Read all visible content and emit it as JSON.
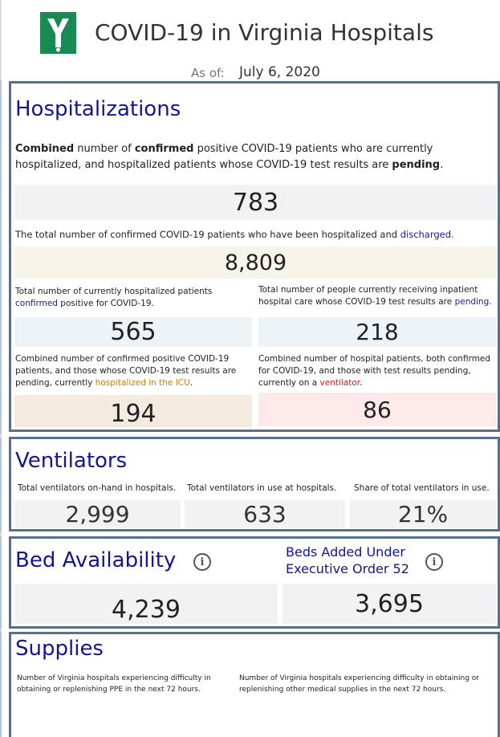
{
  "header": {
    "title": "COVID-19 in Virginia Hospitals",
    "as_of_label": "As of:",
    "as_of_date": "July 6, 2020"
  },
  "hospitalizations": {
    "title": "Hospitalizations",
    "combined_desc": {
      "p1": "Combined",
      "p2": " number of ",
      "p3": "confirmed",
      "p4": " positive COVID-19 patients who are currently hospitalized, and hospitalized patients whose COVID-19 test results are ",
      "p5": "pending",
      "p6": "."
    },
    "combined_value": "783",
    "discharged_desc": {
      "p1": "The total number of confirmed COVID-19 patients who have been hospitalized and ",
      "p2": "discharged",
      "p3": "."
    },
    "discharged_value": "8,809",
    "confirmed_desc": {
      "p1": "Total number of currently hospitalized patients ",
      "p2": "confirmed",
      "p3": " positive for COVID-19."
    },
    "confirmed_value": "565",
    "pending_desc": {
      "p1": "Total number of people currently receiving inpatient hospital care whose COVID-19 test results are ",
      "p2": "pending",
      "p3": "."
    },
    "pending_value": "218",
    "icu_desc": {
      "p1": "Combined number of confirmed positive COVID-19 patients, and those whose COVID-19 test results are pending, currently ",
      "p2": "hospitalized in the ICU",
      "p3": "."
    },
    "icu_value": "194",
    "vent_desc": {
      "p1": "Combined number of hospital patients, both confirmed for COVID-19, and those with test results pending, currently on a ",
      "p2": "ventilator",
      "p3": "."
    },
    "vent_value": "86"
  },
  "ventilators": {
    "title": "Ventilators",
    "items": [
      {
        "label": "Total ventilators on-hand in hospitals.",
        "value": "2,999"
      },
      {
        "label": "Total ventilators in use at hospitals.",
        "value": "633"
      },
      {
        "label": "Share of total ventilators in use.",
        "value": "21%"
      }
    ]
  },
  "beds": {
    "title": "Bed Availability",
    "value": "4,239",
    "added_title": "Beds Added Under Executive Order 52",
    "added_value": "3,695",
    "info_glyph": "i"
  },
  "supplies": {
    "title": "Supplies",
    "ppe_desc": "Number of Virginia hospitals experiencing difficulty in obtaining or replenishing PPE in the next 72 hours.",
    "other_desc": "Number of Virginia hospitals experiencing difficulty in obtaining or replenishing other medical supplies in the next 72 hours."
  },
  "colors": {
    "brand": "#1a8a55",
    "heading": "#141494",
    "border": "#55718e",
    "icu_bg": "#f3ebdf",
    "vent_bg": "#fde9e9",
    "confirmed_bg": "#eef3f8"
  },
  "icons": {
    "logo": "virginia-hospital-logo",
    "info": "info-icon"
  }
}
